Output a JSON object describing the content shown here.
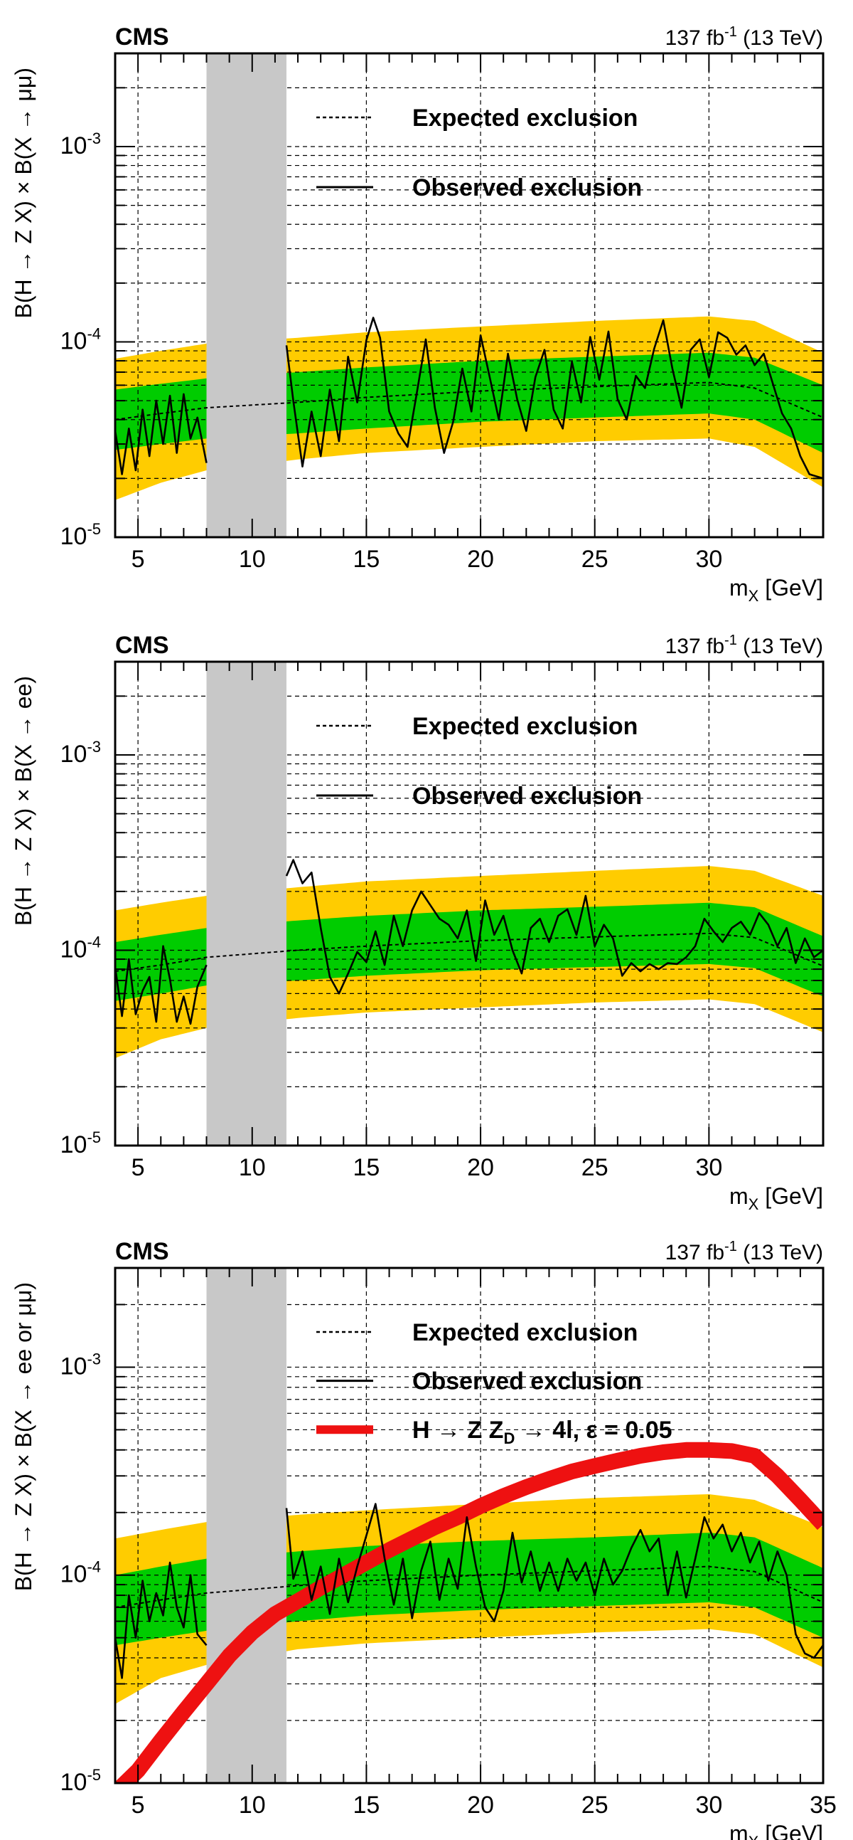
{
  "colors": {
    "band2": "#FFCC00",
    "band1": "#00CC00",
    "veto": "#C8C8C8",
    "model": "#EE1111",
    "line": "#000000"
  },
  "chart_data": [
    {
      "type": "line",
      "panel": "top",
      "experiment": "CMS",
      "lumi_prefix": "137 fb",
      "lumi_exp": "-1",
      "lumi_suffix": " (13 TeV)",
      "xlabel_main": "m",
      "xlabel_sub": "X",
      "xlabel_unit": " [GeV]",
      "ylabel": "B(H → Z X) × B(X → μμ)",
      "xlim": [
        4,
        35
      ],
      "ylim": [
        1e-05,
        0.003
      ],
      "yscale": "log",
      "x_ticks": [
        "5",
        "10",
        "15",
        "20",
        "25",
        "30"
      ],
      "y_ticks": [
        {
          "value": 1e-05,
          "base": "10",
          "exp": "-5"
        },
        {
          "value": 0.0001,
          "base": "10",
          "exp": "-4"
        },
        {
          "value": 0.001,
          "base": "10",
          "exp": "-3"
        }
      ],
      "veto_region": [
        8,
        11.5
      ],
      "legend": [
        {
          "label": "Expected exclusion",
          "style": "dashed"
        },
        {
          "label": "Observed exclusion",
          "style": "solid"
        }
      ],
      "expected": {
        "x": [
          4,
          6,
          8,
          12,
          15,
          20,
          25,
          30,
          32,
          35
        ],
        "y": [
          4e-05,
          4.3e-05,
          4.6e-05,
          4.9e-05,
          5.2e-05,
          5.6e-05,
          5.9e-05,
          6.2e-05,
          5.8e-05,
          4.1e-05
        ]
      },
      "band_1sigma": {
        "lower": [
          2.8e-05,
          3e-05,
          3.2e-05,
          3.4e-05,
          3.6e-05,
          3.9e-05,
          4.1e-05,
          4.3e-05,
          4e-05,
          2.7e-05
        ],
        "upper": [
          5.7e-05,
          6.1e-05,
          6.5e-05,
          7e-05,
          7.4e-05,
          8e-05,
          8.4e-05,
          8.8e-05,
          8.3e-05,
          6e-05
        ]
      },
      "band_2sigma": {
        "lower": [
          1.55e-05,
          1.9e-05,
          2.2e-05,
          2.5e-05,
          2.7e-05,
          2.9e-05,
          3.1e-05,
          3.2e-05,
          2.9e-05,
          1.8e-05
        ],
        "upper": [
          8.2e-05,
          9e-05,
          9.8e-05,
          0.000105,
          0.000112,
          0.00012,
          0.000128,
          0.000135,
          0.000128,
          8.8e-05
        ]
      },
      "observed": {
        "x": [
          4.0,
          4.3,
          4.6,
          4.9,
          5.2,
          5.5,
          5.8,
          6.1,
          6.4,
          6.7,
          7.0,
          7.3,
          7.6,
          8.0,
          11.5,
          11.8,
          12.2,
          12.6,
          13.0,
          13.4,
          13.8,
          14.2,
          14.6,
          15.0,
          15.3,
          15.6,
          16.0,
          16.4,
          16.8,
          17.2,
          17.6,
          18.0,
          18.4,
          18.8,
          19.2,
          19.6,
          20.0,
          20.4,
          20.8,
          21.2,
          21.6,
          22.0,
          22.4,
          22.8,
          23.2,
          23.6,
          24.0,
          24.4,
          24.8,
          25.2,
          25.6,
          26.0,
          26.4,
          26.8,
          27.2,
          27.6,
          28.0,
          28.4,
          28.8,
          29.2,
          29.6,
          30.0,
          30.4,
          30.8,
          31.2,
          31.6,
          32.0,
          32.4,
          32.8,
          33.2,
          33.6,
          34.0,
          34.4,
          35.0
        ],
        "y": [
          3.5e-05,
          2.1e-05,
          3.6e-05,
          2.2e-05,
          4.5e-05,
          2.6e-05,
          5e-05,
          3e-05,
          5.3e-05,
          2.7e-05,
          5.4e-05,
          3.2e-05,
          4.1e-05,
          2.4e-05,
          9.6e-05,
          5e-05,
          2.3e-05,
          4.4e-05,
          2.6e-05,
          5.7e-05,
          3.1e-05,
          8.4e-05,
          4.9e-05,
          0.000102,
          0.000133,
          0.000105,
          4.4e-05,
          3.4e-05,
          2.9e-05,
          5.4e-05,
          0.000103,
          4.6e-05,
          2.7e-05,
          3.9e-05,
          7.3e-05,
          4.4e-05,
          0.000108,
          6.6e-05,
          4e-05,
          8.7e-05,
          5.1e-05,
          3.5e-05,
          6.6e-05,
          9.1e-05,
          4.5e-05,
          3.6e-05,
          7.9e-05,
          4.9e-05,
          0.000106,
          6.4e-05,
          0.000113,
          5.1e-05,
          4e-05,
          6.7e-05,
          5.8e-05,
          9.2e-05,
          0.000129,
          7.3e-05,
          4.6e-05,
          9.1e-05,
          0.000103,
          6.6e-05,
          0.000112,
          0.000105,
          8.6e-05,
          9.6e-05,
          7.6e-05,
          8.7e-05,
          6.1e-05,
          4.3e-05,
          3.6e-05,
          2.6e-05,
          2.1e-05,
          2e-05
        ]
      }
    },
    {
      "type": "line",
      "panel": "middle",
      "experiment": "CMS",
      "lumi_prefix": "137 fb",
      "lumi_exp": "-1",
      "lumi_suffix": " (13 TeV)",
      "xlabel_main": "m",
      "xlabel_sub": "X",
      "xlabel_unit": " [GeV]",
      "ylabel": "B(H → Z X) × B(X → ee)",
      "xlim": [
        4,
        35
      ],
      "ylim": [
        1e-05,
        0.003
      ],
      "yscale": "log",
      "x_ticks": [
        "5",
        "10",
        "15",
        "20",
        "25",
        "30"
      ],
      "y_ticks": [
        {
          "value": 1e-05,
          "base": "10",
          "exp": "-5"
        },
        {
          "value": 0.0001,
          "base": "10",
          "exp": "-4"
        },
        {
          "value": 0.001,
          "base": "10",
          "exp": "-3"
        }
      ],
      "veto_region": [
        8,
        11.5
      ],
      "legend": [
        {
          "label": "Expected exclusion",
          "style": "dashed"
        },
        {
          "label": "Observed exclusion",
          "style": "solid"
        }
      ],
      "expected": {
        "x": [
          4,
          6,
          8,
          12,
          15,
          20,
          25,
          30,
          32,
          35
        ],
        "y": [
          7.8e-05,
          8.4e-05,
          9.2e-05,
          0.0001,
          0.000105,
          0.000112,
          0.000117,
          0.000122,
          0.000116,
          8.3e-05
        ]
      },
      "band_1sigma": {
        "lower": [
          5.5e-05,
          6e-05,
          6.6e-05,
          7e-05,
          7.4e-05,
          7.9e-05,
          8.2e-05,
          8.5e-05,
          8.1e-05,
          5.8e-05
        ],
        "upper": [
          0.00011,
          0.00012,
          0.00013,
          0.000142,
          0.00015,
          0.00016,
          0.000167,
          0.000175,
          0.000166,
          0.000118
        ]
      },
      "band_2sigma": {
        "lower": [
          2.8e-05,
          3.5e-05,
          4e-05,
          4.5e-05,
          4.8e-05,
          5.1e-05,
          5.4e-05,
          5.6e-05,
          5.3e-05,
          3.8e-05
        ],
        "upper": [
          0.00016,
          0.000175,
          0.00019,
          0.00021,
          0.000225,
          0.00024,
          0.000255,
          0.00027,
          0.000255,
          0.00019
        ]
      },
      "observed": {
        "x": [
          4.0,
          4.3,
          4.6,
          4.9,
          5.2,
          5.5,
          5.8,
          6.1,
          6.4,
          6.7,
          7.0,
          7.3,
          7.6,
          8.0,
          11.5,
          11.8,
          12.2,
          12.6,
          13.0,
          13.4,
          13.8,
          14.2,
          14.6,
          15.0,
          15.4,
          15.8,
          16.2,
          16.6,
          17.0,
          17.4,
          17.8,
          18.2,
          18.6,
          19.0,
          19.4,
          19.8,
          20.2,
          20.6,
          21.0,
          21.4,
          21.8,
          22.2,
          22.6,
          23.0,
          23.4,
          23.8,
          24.2,
          24.6,
          25.0,
          25.4,
          25.8,
          26.2,
          26.6,
          27.0,
          27.4,
          27.8,
          28.2,
          28.6,
          29.0,
          29.4,
          29.8,
          30.2,
          30.6,
          31.0,
          31.4,
          31.8,
          32.2,
          32.6,
          33.0,
          33.4,
          33.8,
          34.2,
          34.6,
          35.0
        ],
        "y": [
          8.2e-05,
          4.6e-05,
          9e-05,
          4.7e-05,
          6.2e-05,
          7.3e-05,
          4.3e-05,
          0.000105,
          7.1e-05,
          4.3e-05,
          5.8e-05,
          4.2e-05,
          6.5e-05,
          8.4e-05,
          0.00024,
          0.00029,
          0.00022,
          0.00025,
          0.00013,
          7.3e-05,
          6e-05,
          7.6e-05,
          9.8e-05,
          8.7e-05,
          0.000125,
          8.4e-05,
          0.00015,
          0.000105,
          0.00016,
          0.0002,
          0.00017,
          0.000145,
          0.000135,
          0.000115,
          0.00016,
          8.8e-05,
          0.00018,
          0.00012,
          0.00015,
          0.0001,
          7.6e-05,
          0.00013,
          0.000145,
          0.00011,
          0.00015,
          0.000162,
          0.00012,
          0.00019,
          0.000105,
          0.000135,
          0.000115,
          7.4e-05,
          8.6e-05,
          7.8e-05,
          8.5e-05,
          8e-05,
          8.6e-05,
          8.5e-05,
          9.2e-05,
          0.000105,
          0.000145,
          0.000125,
          0.00011,
          0.00013,
          0.00014,
          0.00012,
          0.000155,
          0.000135,
          0.000105,
          0.00013,
          8.6e-05,
          0.000115,
          9.2e-05,
          0.0001
        ]
      }
    },
    {
      "type": "line",
      "panel": "bottom",
      "experiment": "CMS",
      "lumi_prefix": "137 fb",
      "lumi_exp": "-1",
      "lumi_suffix": " (13 TeV)",
      "xlabel_main": "m",
      "xlabel_sub": "X",
      "xlabel_unit": " [GeV]",
      "ylabel": "B(H → Z X) × B(X → ee or μμ)",
      "xlim": [
        4,
        35
      ],
      "ylim": [
        1e-05,
        0.003
      ],
      "yscale": "log",
      "x_ticks": [
        "5",
        "10",
        "15",
        "20",
        "25",
        "30",
        "35"
      ],
      "y_ticks": [
        {
          "value": 1e-05,
          "base": "10",
          "exp": "-5"
        },
        {
          "value": 0.0001,
          "base": "10",
          "exp": "-4"
        },
        {
          "value": 0.001,
          "base": "10",
          "exp": "-3"
        }
      ],
      "veto_region": [
        8,
        11.5
      ],
      "legend": [
        {
          "label": "Expected exclusion",
          "style": "dashed"
        },
        {
          "label": "Observed exclusion",
          "style": "solid"
        },
        {
          "label": "H → Z Z",
          "label_sub": "D",
          "label_rest": " → 4l, ε = 0.05",
          "style": "red"
        }
      ],
      "expected": {
        "x": [
          4,
          6,
          8,
          12,
          15,
          20,
          25,
          30,
          32,
          35
        ],
        "y": [
          7e-05,
          7.6e-05,
          8.2e-05,
          8.9e-05,
          9.4e-05,
          0.0001,
          0.000105,
          0.00011,
          0.000104,
          7.4e-05
        ]
      },
      "band_1sigma": {
        "lower": [
          4.6e-05,
          5e-05,
          5.4e-05,
          6e-05,
          6.4e-05,
          6.8e-05,
          7.1e-05,
          7.4e-05,
          7e-05,
          5e-05
        ],
        "upper": [
          0.0001,
          0.00011,
          0.00012,
          0.00013,
          0.000138,
          0.000146,
          0.000152,
          0.00016,
          0.000152,
          0.000108
        ]
      },
      "band_2sigma": {
        "lower": [
          2.4e-05,
          3.2e-05,
          3.7e-05,
          4.4e-05,
          4.7e-05,
          5e-05,
          5.3e-05,
          5.5e-05,
          5.2e-05,
          3.6e-05
        ],
        "upper": [
          0.00015,
          0.000165,
          0.00018,
          0.000195,
          0.000205,
          0.00022,
          0.000235,
          0.000245,
          0.00023,
          0.00017
        ]
      },
      "observed": {
        "x": [
          4.0,
          4.3,
          4.6,
          4.9,
          5.2,
          5.5,
          5.8,
          6.1,
          6.4,
          6.7,
          7.0,
          7.3,
          7.6,
          8.0,
          11.5,
          11.8,
          12.2,
          12.6,
          13.0,
          13.4,
          13.8,
          14.2,
          14.6,
          15.0,
          15.4,
          15.8,
          16.2,
          16.6,
          17.0,
          17.4,
          17.8,
          18.2,
          18.6,
          19.0,
          19.4,
          19.8,
          20.2,
          20.6,
          21.0,
          21.4,
          21.8,
          22.2,
          22.6,
          23.0,
          23.4,
          23.8,
          24.2,
          24.6,
          25.0,
          25.4,
          25.8,
          26.2,
          26.6,
          27.0,
          27.4,
          27.8,
          28.2,
          28.6,
          29.0,
          29.4,
          29.8,
          30.2,
          30.6,
          31.0,
          31.4,
          31.8,
          32.2,
          32.6,
          33.0,
          33.4,
          33.8,
          34.2,
          34.6,
          35.0
        ],
        "y": [
          5e-05,
          3.2e-05,
          8e-05,
          5e-05,
          9.4e-05,
          6e-05,
          8.2e-05,
          6.4e-05,
          0.000115,
          7e-05,
          5.6e-05,
          0.0001,
          5.2e-05,
          4.6e-05,
          0.00021,
          9.6e-05,
          0.00013,
          7.6e-05,
          0.00011,
          6.5e-05,
          0.00012,
          7.4e-05,
          0.00011,
          0.000155,
          0.00022,
          0.00012,
          7.2e-05,
          0.00012,
          6.2e-05,
          0.000105,
          0.000145,
          7.6e-05,
          0.00012,
          8.6e-05,
          0.00019,
          0.00011,
          7e-05,
          6e-05,
          8.4e-05,
          0.00016,
          9.2e-05,
          0.00013,
          8.4e-05,
          0.000115,
          8.4e-05,
          0.00012,
          9.4e-05,
          0.000115,
          8e-05,
          0.00012,
          9e-05,
          0.000105,
          0.000135,
          0.000165,
          0.00013,
          0.00015,
          8e-05,
          0.00013,
          7.8e-05,
          0.00012,
          0.00019,
          0.00015,
          0.000175,
          0.00013,
          0.00016,
          0.000115,
          0.000145,
          9.4e-05,
          0.00013,
          0.0001,
          5.2e-05,
          4.2e-05,
          4e-05,
          4.6e-05
        ]
      },
      "model_curve": {
        "x": [
          4,
          5,
          6,
          7,
          8,
          9,
          10,
          11,
          12,
          13,
          14,
          15,
          16,
          17,
          18,
          19,
          20,
          21,
          22,
          23,
          24,
          25,
          26,
          27,
          28,
          29,
          30,
          31,
          32,
          33,
          34,
          35
        ],
        "y": [
          9e-06,
          1.15e-05,
          1.6e-05,
          2.2e-05,
          3e-05,
          4.1e-05,
          5.3e-05,
          6.5e-05,
          7.5e-05,
          8.7e-05,
          0.0001,
          0.000115,
          0.000132,
          0.00015,
          0.00017,
          0.00019,
          0.000215,
          0.00024,
          0.000265,
          0.00029,
          0.000315,
          0.000335,
          0.000355,
          0.000375,
          0.00039,
          0.0004,
          0.0004,
          0.000395,
          0.000375,
          0.0003,
          0.00023,
          0.000175
        ]
      }
    }
  ]
}
